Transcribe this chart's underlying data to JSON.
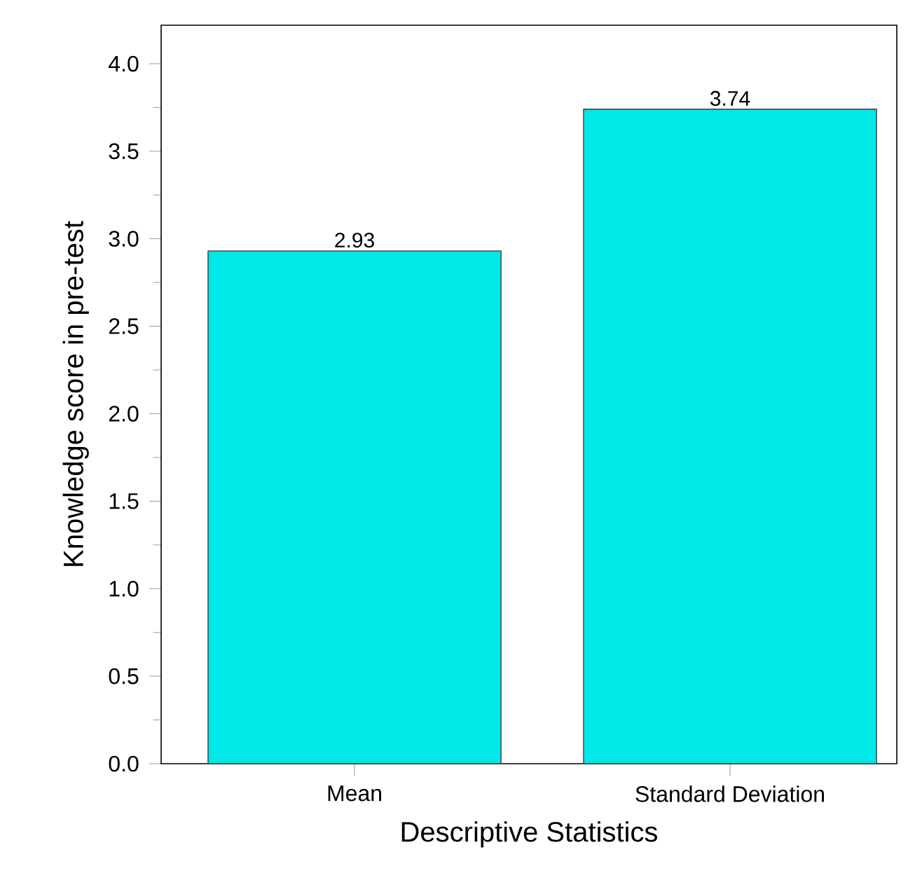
{
  "chart_data": {
    "type": "bar",
    "xlabel": "Descriptive Statistics",
    "ylabel": "Knowledge score in pre-test",
    "categories": [
      "Mean",
      "Standard Deviation"
    ],
    "values": [
      2.93,
      3.74
    ],
    "color": "#00e8e8",
    "ylim": [
      0,
      4.22
    ],
    "yticks": [
      {
        "value": 0,
        "label": "0.0"
      },
      {
        "value": 0.5,
        "label": "0.5"
      },
      {
        "value": 1,
        "label": "1.0"
      },
      {
        "value": 1.5,
        "label": "1.5"
      },
      {
        "value": 2,
        "label": "2.0"
      },
      {
        "value": 2.5,
        "label": "2.5"
      },
      {
        "value": 3,
        "label": "3.0"
      },
      {
        "value": 3.5,
        "label": "3.5"
      },
      {
        "value": 4,
        "label": "4.0"
      }
    ],
    "data_labels": true
  }
}
